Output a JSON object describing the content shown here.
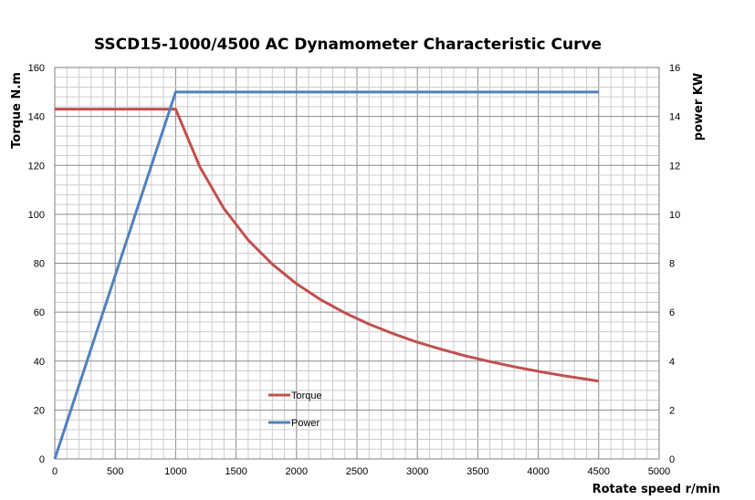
{
  "chart_data": {
    "type": "line",
    "title": "SSCD15-1000/4500 AC Dynamometer Characteristic Curve",
    "xlabel": "Rotate speed r/min",
    "ylabel": "Torque N.m",
    "y2label": "power KW",
    "xlim": [
      0,
      5000
    ],
    "ylim": [
      0,
      160
    ],
    "y2lim": [
      0,
      16
    ],
    "x_ticks": [
      0,
      500,
      1000,
      1500,
      2000,
      2500,
      3000,
      3500,
      4000,
      4500,
      5000
    ],
    "y_ticks": [
      0,
      20,
      40,
      60,
      80,
      100,
      120,
      140,
      160
    ],
    "y2_ticks": [
      0,
      2,
      4,
      6,
      8,
      10,
      12,
      14,
      16
    ],
    "grid": true,
    "legend_position": "center-left",
    "series": [
      {
        "name": "Torque",
        "axis": "left",
        "color": "#C0504D",
        "x": [
          0,
          1000,
          1200,
          1400,
          1600,
          1800,
          2000,
          2200,
          2400,
          2600,
          2800,
          3000,
          3200,
          3400,
          3600,
          3800,
          4000,
          4200,
          4400,
          4500
        ],
        "values": [
          143,
          143,
          119.4,
          102.3,
          89.5,
          79.6,
          71.6,
          65.1,
          59.7,
          55.1,
          51.2,
          47.7,
          44.8,
          42.1,
          39.8,
          37.7,
          35.8,
          34.1,
          32.6,
          31.8
        ]
      },
      {
        "name": "Power",
        "axis": "right",
        "color": "#4F81BD",
        "x": [
          0,
          1000,
          4500
        ],
        "values": [
          0,
          15,
          15
        ]
      }
    ]
  }
}
